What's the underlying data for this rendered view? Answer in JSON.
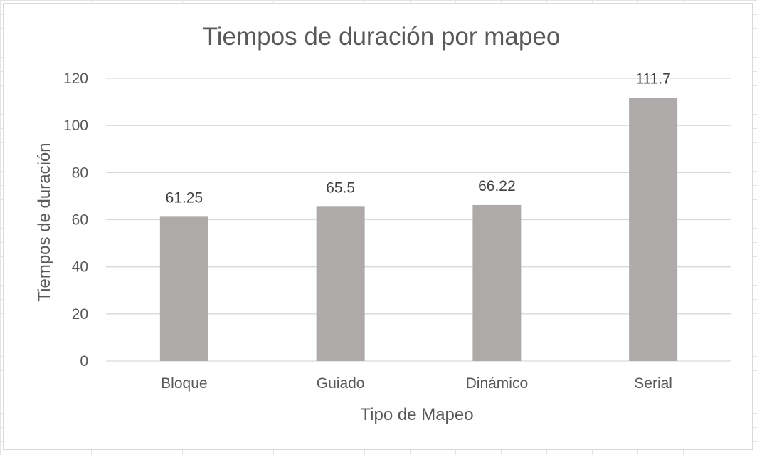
{
  "chart_data": {
    "type": "bar",
    "title": "Tiempos de duración por mapeo",
    "xlabel": "Tipo de Mapeo",
    "ylabel": "Tiempos de duración",
    "categories": [
      "Bloque",
      "Guiado",
      "Dinámico",
      "Serial"
    ],
    "values": [
      61.25,
      65.5,
      66.22,
      111.7
    ],
    "data_labels": [
      "61.25",
      "65.5",
      "66.22",
      "111.7"
    ],
    "ylim": [
      0,
      120
    ],
    "yticks": [
      0,
      20,
      40,
      60,
      80,
      100,
      120
    ],
    "grid": true,
    "legend": "none",
    "bar_color": "#aeaaaa",
    "grid_color": "#d9d9d9",
    "text_color": "#595959"
  }
}
